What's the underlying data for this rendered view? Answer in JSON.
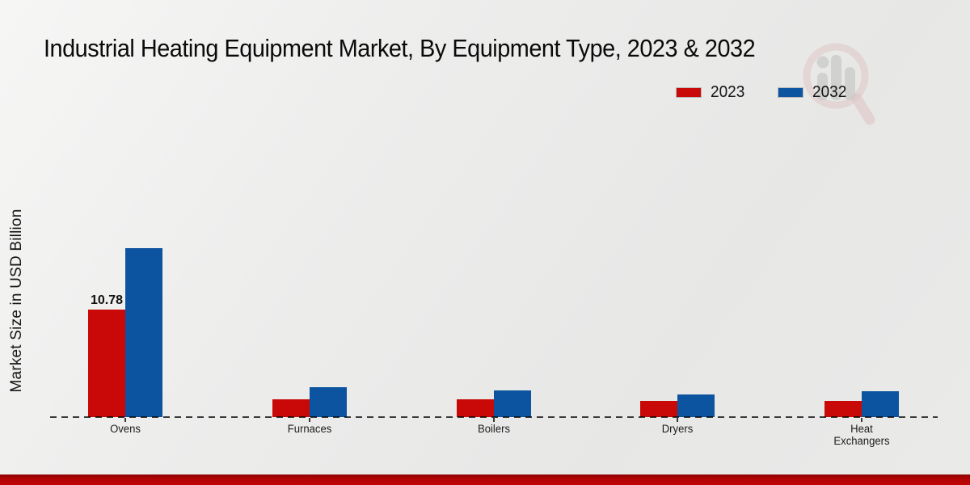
{
  "title": "Industrial Heating Equipment Market, By Equipment Type, 2023 & 2032",
  "ylabel": "Market Size in USD Billion",
  "legend": [
    {
      "label": "2023",
      "color": "#c90808"
    },
    {
      "label": "2032",
      "color": "#0d54a0"
    }
  ],
  "colors": {
    "series_2023": "#c90808",
    "series_2032": "#0d54a0",
    "footer_red": "#b00404",
    "baseline": "#3a3a3a",
    "background": "#ebebea"
  },
  "chart_data": {
    "type": "bar",
    "categories": [
      "Ovens",
      "Furnaces",
      "Boilers",
      "Dryers",
      "Heat Exchangers"
    ],
    "series": [
      {
        "name": "2023",
        "color": "#c90808",
        "values": [
          10.78,
          1.8,
          1.8,
          1.6,
          1.6
        ]
      },
      {
        "name": "2032",
        "color": "#0d54a0",
        "values": [
          16.9,
          3.0,
          2.7,
          2.3,
          2.6
        ]
      }
    ],
    "value_labels": [
      {
        "series": "2023",
        "category": "Ovens",
        "text": "10.78"
      }
    ],
    "title": "Industrial Heating Equipment Market, By Equipment Type, 2023 & 2032",
    "xlabel": "",
    "ylabel": "Market Size in USD Billion",
    "ylim": [
      0,
      17
    ],
    "grid": false,
    "axis_ticks_visible": false,
    "legend_position": "top-right",
    "baseline_style": "dashed"
  }
}
